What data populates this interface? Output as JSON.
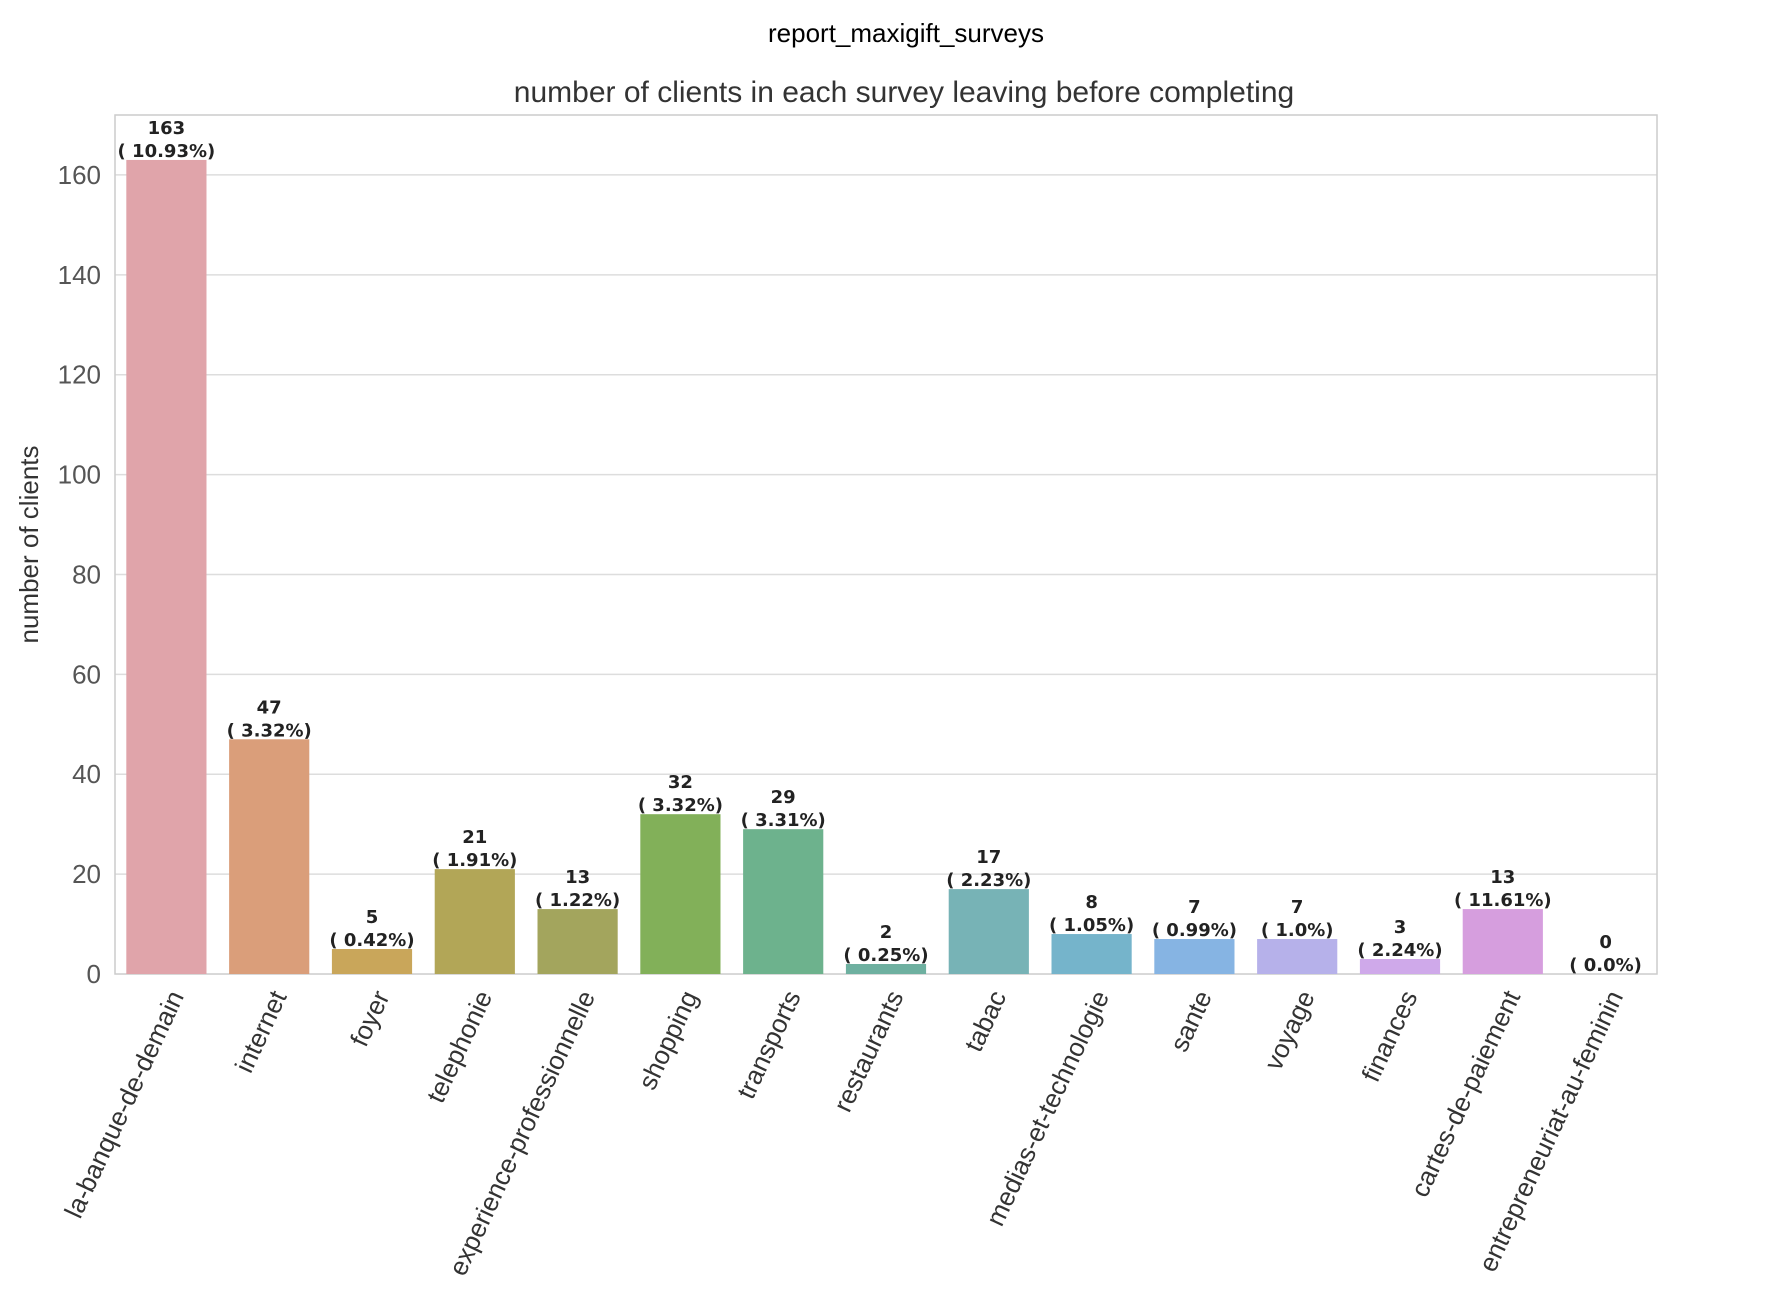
{
  "figure_title": "report_maxigift_surveys",
  "chart_data": {
    "type": "bar",
    "title": "number of clients in each survey leaving before completing",
    "xlabel": "",
    "ylabel": "number of clients",
    "ylim": [
      0,
      172
    ],
    "yticks": [
      0,
      20,
      40,
      60,
      80,
      100,
      120,
      140,
      160
    ],
    "grid": true,
    "categories": [
      "la-banque-de-demain",
      "internet",
      "foyer",
      "telephonie",
      "experience-professionnelle",
      "shopping",
      "transports",
      "restaurants",
      "tabac",
      "medias-et-technologie",
      "sante",
      "voyage",
      "finances",
      "cartes-de-paiement",
      "entrepreneuriat-au-feminin"
    ],
    "values": [
      163,
      47,
      5,
      21,
      13,
      32,
      29,
      2,
      17,
      8,
      7,
      7,
      3,
      13,
      0
    ],
    "value_labels": [
      "163",
      "47",
      "5",
      "21",
      "13",
      "32",
      "29",
      "2",
      "17",
      "8",
      "7",
      "7",
      "3",
      "13",
      "0"
    ],
    "percent_labels": [
      "( 10.93%)",
      "( 3.32%)",
      "( 0.42%)",
      "( 1.91%)",
      "( 1.22%)",
      "( 3.32%)",
      "( 3.31%)",
      "( 0.25%)",
      "( 2.23%)",
      "( 1.05%)",
      "( 0.99%)",
      "( 1.0%)",
      "( 2.24%)",
      "( 11.61%)",
      "( 0.0%)"
    ],
    "colors": [
      "#e0a4aa",
      "#da9e7a",
      "#c9a65a",
      "#b2a657",
      "#a3a55d",
      "#82b059",
      "#6db28d",
      "#6eb0a0",
      "#77b3b6",
      "#75b4cb",
      "#86b4e3",
      "#b6b1ea",
      "#cfa9ea",
      "#d69ede",
      "#e4a0c8"
    ]
  }
}
